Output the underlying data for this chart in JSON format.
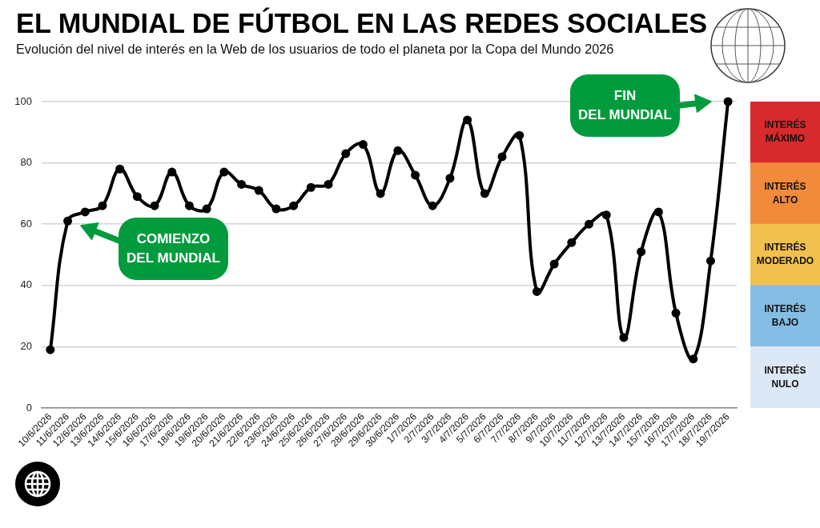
{
  "chart_data": [
    {
      "type": "line",
      "title": "EL MUNDIAL DE FÚTBOL EN LAS REDES SOCIALES",
      "subtitle": "Evolución del nivel de interés en la Web de los usuarios de todo el planeta por la Copa del Mundo 2026",
      "categories": [
        "10/6/2026",
        "11/6/2026",
        "12/6/2026",
        "13/6/2026",
        "14/6/2026",
        "15/6/2026",
        "16/6/2026",
        "17/6/2026",
        "18/6/2026",
        "19/6/2026",
        "20/6/2026",
        "21/6/2026",
        "22/6/2026",
        "23/6/2026",
        "24/6/2026",
        "25/6/2026",
        "26/6/2026",
        "27/6/2026",
        "28/6/2026",
        "29/6/2026",
        "30/6/2026",
        "1/7/2026",
        "2/7/2026",
        "3/7/2026",
        "4/7/2026",
        "5/7/2026",
        "6/7/2026",
        "7/7/2026",
        "8/7/2026",
        "9/7/2026",
        "10/7/2026",
        "11/7/2026",
        "12/7/2026",
        "13/7/2026",
        "14/7/2026",
        "15/7/2026",
        "16/7/2026",
        "17/7/2026",
        "18/7/2026",
        "19/7/2026"
      ],
      "values": [
        19,
        61,
        64,
        66,
        78,
        69,
        66,
        77,
        66,
        65,
        77,
        73,
        71,
        65,
        66,
        72,
        73,
        83,
        86,
        70,
        84,
        76,
        66,
        75,
        94,
        70,
        82,
        89,
        38,
        47,
        54,
        60,
        63,
        23,
        51,
        64,
        31,
        16,
        48,
        100
      ],
      "color": "#000000",
      "marker": "circle",
      "line_style": "solid",
      "ylim": [
        0,
        100
      ],
      "yticks": [
        0,
        20,
        40,
        60,
        80,
        100
      ],
      "grid": "y",
      "annotations": [
        "COMIENZO DEL MUNDIAL",
        "FIN DEL MUNDIAL"
      ]
    },
    {
      "type": "bar",
      "categories": [
        null
      ],
      "stacked": true,
      "ylim": [
        0,
        100
      ],
      "tick_labels": false,
      "series": [
        {
          "name": "INTERÉS NULO",
          "color": "#dce8f6",
          "values": [
            20
          ]
        },
        {
          "name": "INTERÉS BAJO",
          "color": "#84bde4",
          "values": [
            20
          ]
        },
        {
          "name": "INTERÉS MODERADO",
          "color": "#f2c04f",
          "values": [
            20
          ]
        },
        {
          "name": "INTERÉS ALTO",
          "color": "#f18a3b",
          "values": [
            20
          ]
        },
        {
          "name": "INTERÉS MÁXIMO",
          "color": "#d62a2c",
          "values": [
            20
          ]
        }
      ]
    }
  ]
}
